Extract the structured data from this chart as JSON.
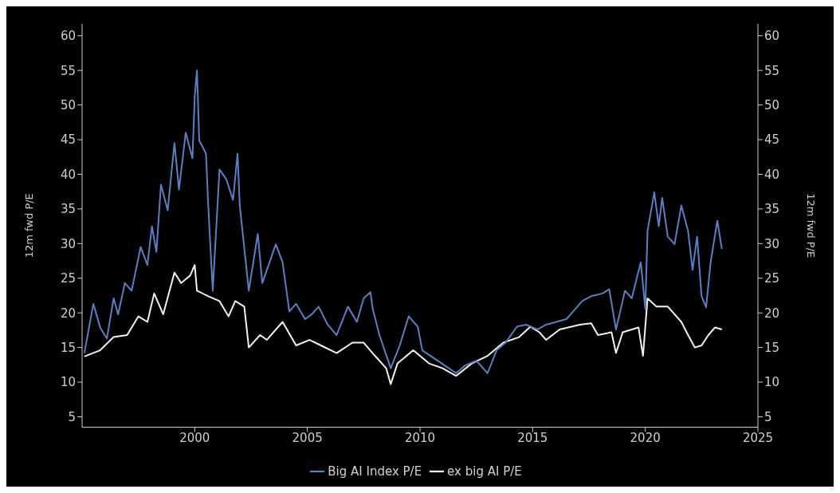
{
  "chart_data": {
    "type": "line",
    "ylabel": "12m fwd P/E",
    "y2label": "12m fwd P/E",
    "xlim": [
      1995,
      2025
    ],
    "xticks": [
      2000,
      2005,
      2010,
      2015,
      2020,
      2025
    ],
    "ylim": [
      3.5,
      61.7
    ],
    "yticks": [
      5,
      10,
      15,
      20,
      25,
      30,
      35,
      40,
      45,
      50,
      55,
      60
    ],
    "y2lim": [
      3.5,
      61.7
    ],
    "y2ticks": [
      5,
      10,
      15,
      20,
      25,
      30,
      35,
      40,
      45,
      50,
      55,
      60
    ],
    "grid": false,
    "legend": "bottom",
    "marker": "none",
    "line_style": "solid",
    "series": [
      {
        "name": "ex big AI P/E",
        "color": "#f2f2f2",
        "x": [
          1995.1,
          1995.8,
          1996.4,
          1997.0,
          1997.5,
          1997.9,
          1998.2,
          1998.6,
          1999.1,
          1999.4,
          1999.8,
          2000.0,
          2000.1,
          2000.6,
          2001.1,
          2001.5,
          2001.8,
          2002.2,
          2002.4,
          2002.9,
          2003.2,
          2003.9,
          2004.5,
          2005.1,
          2005.6,
          2006.3,
          2007.0,
          2007.5,
          2008.0,
          2008.5,
          2008.7,
          2009.0,
          2009.7,
          2010.4,
          2011.0,
          2011.6,
          2012.3,
          2013.0,
          2013.7,
          2014.4,
          2014.9,
          2015.3,
          2015.6,
          2016.2,
          2017.1,
          2017.6,
          2017.9,
          2018.5,
          2018.7,
          2019.0,
          2019.7,
          2019.9,
          2020.1,
          2020.5,
          2021.0,
          2021.6,
          2021.9,
          2022.2,
          2022.5,
          2022.8,
          2023.1,
          2023.4
        ],
        "values": [
          13.7,
          14.6,
          16.5,
          16.8,
          19.5,
          18.7,
          22.8,
          19.8,
          25.8,
          24.3,
          25.4,
          26.9,
          23.2,
          22.4,
          21.7,
          19.5,
          21.7,
          20.9,
          15.0,
          16.8,
          16.1,
          18.7,
          15.3,
          16.1,
          15.3,
          14.2,
          15.7,
          15.7,
          13.8,
          12.0,
          9.7,
          12.7,
          14.6,
          12.7,
          12.0,
          10.9,
          12.7,
          13.8,
          15.7,
          16.5,
          18.0,
          17.2,
          16.1,
          17.6,
          18.3,
          18.5,
          16.8,
          17.2,
          14.2,
          17.2,
          17.9,
          13.8,
          22.1,
          20.9,
          20.9,
          18.7,
          16.8,
          15.0,
          15.3,
          16.8,
          17.9,
          17.6
        ]
      },
      {
        "name": "Big AI Index P/E",
        "color": "#5b7fc7",
        "x": [
          1995.1,
          1995.5,
          1995.8,
          1996.1,
          1996.4,
          1996.6,
          1996.9,
          1997.2,
          1997.6,
          1997.9,
          1998.1,
          1998.3,
          1998.5,
          1998.8,
          1999.1,
          1999.3,
          1999.6,
          1999.9,
          2000.0,
          2000.1,
          2000.2,
          2000.5,
          2000.6,
          2000.8,
          2000.96,
          2001.1,
          2001.4,
          2001.7,
          2001.9,
          2002.0,
          2002.4,
          2002.8,
          2003.0,
          2003.6,
          2003.9,
          2004.2,
          2004.5,
          2004.9,
          2005.2,
          2005.5,
          2005.9,
          2006.3,
          2006.8,
          2007.2,
          2007.5,
          2007.8,
          2007.9,
          2008.2,
          2008.7,
          2009.1,
          2009.5,
          2009.9,
          2010.1,
          2010.6,
          2011.1,
          2011.6,
          2012.0,
          2012.5,
          2013.0,
          2013.4,
          2013.8,
          2014.3,
          2014.7,
          2015.2,
          2015.6,
          2016.5,
          2016.8,
          2017.2,
          2017.6,
          2018.1,
          2018.4,
          2018.7,
          2019.1,
          2019.4,
          2019.8,
          2020.0,
          2020.1,
          2020.4,
          2020.6,
          2020.75,
          2021.0,
          2021.3,
          2021.6,
          2021.9,
          2022.1,
          2022.3,
          2022.5,
          2022.7,
          2022.9,
          2023.2,
          2023.4
        ],
        "values": [
          14.2,
          21.3,
          17.9,
          16.3,
          22.1,
          19.8,
          24.3,
          23.2,
          29.5,
          26.9,
          32.5,
          28.8,
          38.5,
          34.8,
          44.5,
          37.8,
          46.0,
          42.3,
          51.2,
          55.0,
          44.9,
          43.0,
          35.5,
          23.2,
          32.5,
          40.7,
          39.3,
          36.3,
          43.0,
          35.5,
          23.2,
          31.4,
          24.3,
          29.9,
          27.3,
          20.2,
          21.3,
          19.1,
          19.8,
          20.9,
          18.3,
          16.8,
          20.9,
          18.7,
          22.1,
          23.0,
          20.6,
          16.8,
          12.0,
          15.3,
          19.5,
          18.0,
          14.6,
          13.5,
          12.4,
          11.3,
          12.4,
          13.1,
          11.3,
          14.6,
          15.7,
          18.0,
          18.3,
          17.6,
          18.3,
          19.1,
          20.2,
          21.7,
          22.4,
          22.8,
          23.4,
          17.6,
          23.2,
          22.1,
          27.3,
          20.6,
          31.8,
          37.4,
          32.5,
          36.6,
          31.0,
          29.9,
          35.5,
          31.8,
          26.2,
          31.0,
          22.4,
          20.8,
          27.3,
          33.3,
          29.2
        ]
      }
    ]
  }
}
